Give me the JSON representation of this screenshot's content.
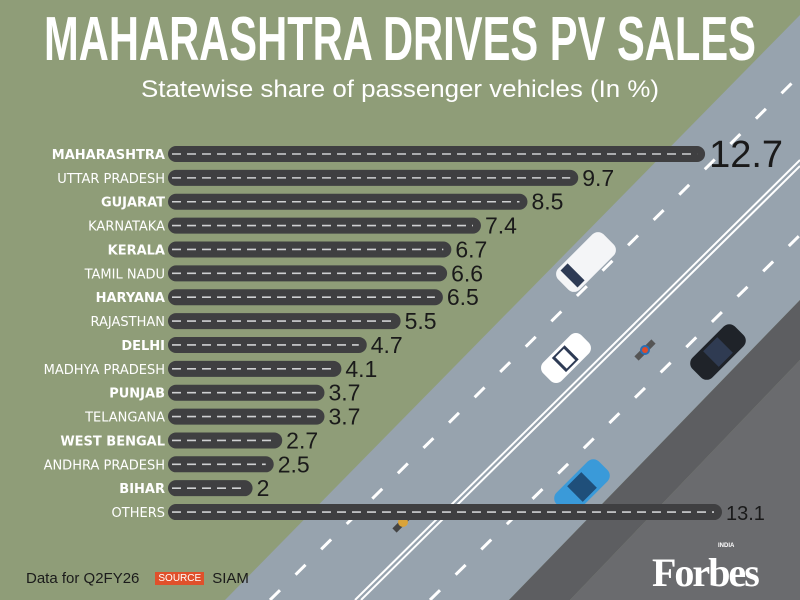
{
  "title": "MAHARASHTRA DRIVES PV SALES",
  "subtitle": "Statewise share of passenger vehicles (In %)",
  "footer": {
    "note": "Data for Q2FY26",
    "source_label": "SOURCE",
    "source": "SIAM"
  },
  "logo": {
    "brand": "Forbes",
    "edition": "INDIA"
  },
  "colors": {
    "background": "#8f9d78",
    "road": "#97a3ae",
    "bar": "#3f3f41",
    "shoulder": "#5d5e61"
  },
  "chart_data": {
    "type": "bar",
    "orientation": "horizontal",
    "title": "MAHARASHTRA DRIVES PV SALES",
    "subtitle": "Statewise share of passenger vehicles (In %)",
    "categories": [
      "MAHARASHTRA",
      "UTTAR PRADESH",
      "GUJARAT",
      "KARNATAKA",
      "KERALA",
      "TAMIL NADU",
      "HARYANA",
      "RAJASTHAN",
      "DELHI",
      "MADHYA PRADESH",
      "PUNJAB",
      "TELANGANA",
      "WEST BENGAL",
      "ANDHRA PRADESH",
      "BIHAR",
      "OTHERS"
    ],
    "values": [
      12.7,
      9.7,
      8.5,
      7.4,
      6.7,
      6.6,
      6.5,
      5.5,
      4.7,
      4.1,
      3.7,
      3.7,
      2.7,
      2.5,
      2,
      13.1
    ],
    "value_labels": [
      "12.7",
      "9.7",
      "8.5",
      "7.4",
      "6.7",
      "6.6",
      "6.5",
      "5.5",
      "4.7",
      "4.1",
      "3.7",
      "3.7",
      "2.7",
      "2.5",
      "2",
      "13.1"
    ],
    "xlim": [
      0,
      13.1
    ],
    "grid": false,
    "legend": "none",
    "bar_style": "road with dashed centre line"
  }
}
